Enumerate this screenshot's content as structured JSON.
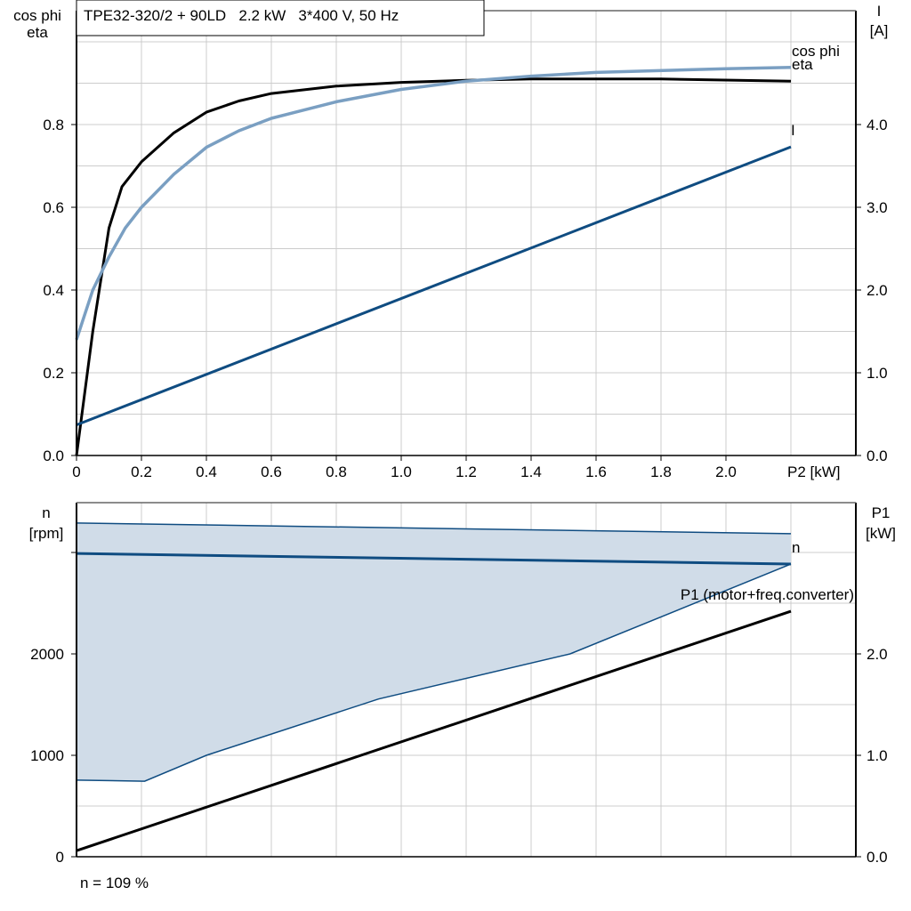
{
  "header": {
    "title": "TPE32-320/2 + 90LD   2.2 kW   3*400 V, 50 Hz"
  },
  "footer": {
    "note": "n = 109 %"
  },
  "colors": {
    "eta": "#000000",
    "cos_phi": "#7a9fc2",
    "I": "#0f4c81",
    "n": "#0f4c81",
    "n_band_fill": "#d0dce8",
    "P1": "#000000",
    "grid": "#cccccc"
  },
  "chart_data": [
    {
      "type": "line",
      "xlabel": "P2 [kW]",
      "ylabel_left": [
        "cos phi",
        "eta"
      ],
      "ylabel_right": [
        "I",
        "[A]"
      ],
      "xlim": [
        0,
        2.4
      ],
      "ylim_left": [
        0,
        1.07
      ],
      "ylim_right": [
        0,
        5.35
      ],
      "x_ticks": [
        "0",
        "0.2",
        "0.4",
        "0.6",
        "0.8",
        "1.0",
        "1.2",
        "1.4",
        "1.6",
        "1.8",
        "2.0"
      ],
      "y_left_ticks": [
        "0.0",
        "0.2",
        "0.4",
        "0.6",
        "0.8"
      ],
      "y_right_ticks": [
        "0.0",
        "1.0",
        "2.0",
        "3.0",
        "4.0"
      ],
      "grid": true,
      "series": [
        {
          "name": "eta",
          "axis": "left",
          "x": [
            0,
            0.05,
            0.1,
            0.14,
            0.2,
            0.3,
            0.4,
            0.5,
            0.6,
            0.8,
            1.0,
            1.2,
            1.4,
            1.8,
            2.2
          ],
          "y": [
            0,
            0.3,
            0.55,
            0.65,
            0.71,
            0.78,
            0.83,
            0.857,
            0.875,
            0.893,
            0.902,
            0.907,
            0.91,
            0.91,
            0.905
          ]
        },
        {
          "name": "cos phi",
          "axis": "left",
          "x": [
            0,
            0.05,
            0.1,
            0.15,
            0.2,
            0.3,
            0.4,
            0.5,
            0.6,
            0.8,
            1.0,
            1.2,
            1.4,
            1.6,
            2.0,
            2.2
          ],
          "y": [
            0.28,
            0.4,
            0.48,
            0.55,
            0.6,
            0.68,
            0.745,
            0.785,
            0.815,
            0.855,
            0.885,
            0.905,
            0.917,
            0.926,
            0.935,
            0.938
          ]
        },
        {
          "name": "I",
          "axis": "right",
          "x": [
            0,
            2.2
          ],
          "y": [
            0.37,
            3.73
          ]
        }
      ]
    },
    {
      "type": "line",
      "ylabel_left": [
        "n",
        "[rpm]"
      ],
      "ylabel_right": [
        "P1",
        "[kW]"
      ],
      "xlim": [
        0,
        2.4
      ],
      "ylim_left": [
        0,
        3500
      ],
      "ylim_right": [
        0,
        3.5
      ],
      "y_left_ticks": [
        "0",
        "1000",
        "2000"
      ],
      "y_right_ticks": [
        "0.0",
        "1.0",
        "2.0"
      ],
      "grid": true,
      "band": {
        "upper": {
          "x": [
            0,
            2.2
          ],
          "y": [
            3290,
            3185
          ]
        },
        "lower": {
          "x": [
            0,
            0.21,
            0.4,
            0.93,
            1.52,
            2.2
          ],
          "y": [
            755,
            745,
            1000,
            1555,
            2000,
            2886
          ]
        }
      },
      "series": [
        {
          "name": "n",
          "axis": "left",
          "x": [
            0,
            2.2
          ],
          "y": [
            2990,
            2886
          ]
        },
        {
          "name": "P1 (motor+freq.converter)",
          "axis": "right",
          "x": [
            0,
            2.2
          ],
          "y": [
            0.06,
            2.42
          ]
        }
      ]
    }
  ]
}
